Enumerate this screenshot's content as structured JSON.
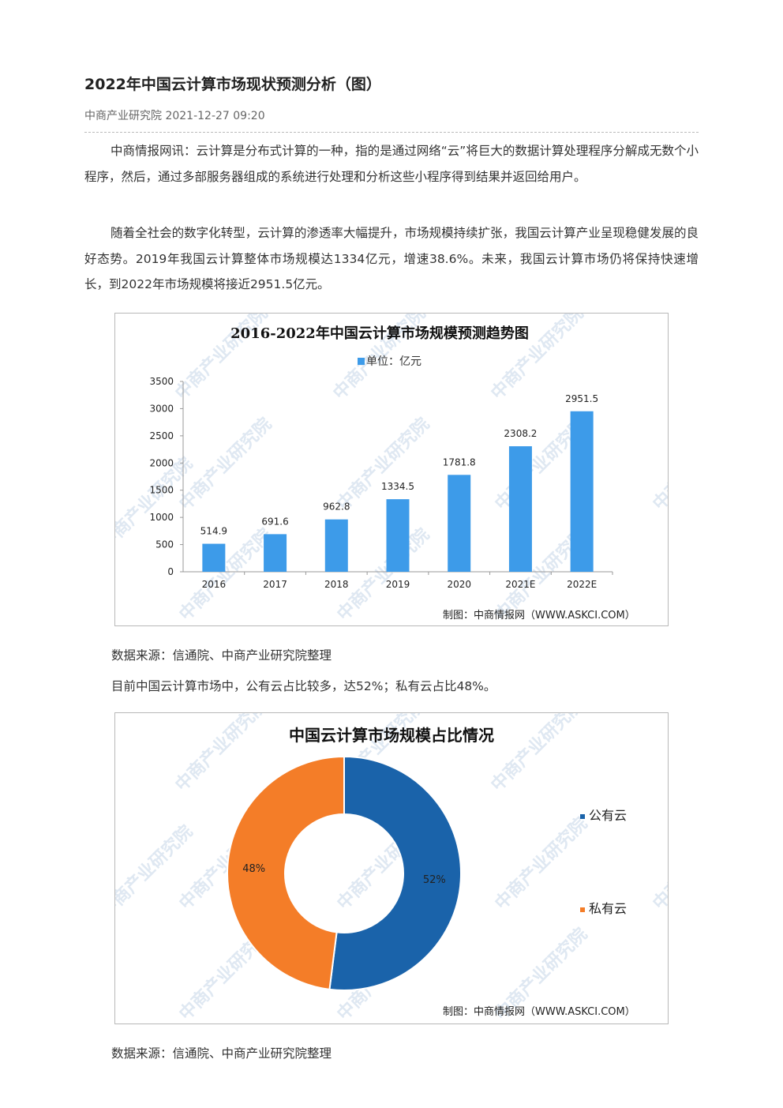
{
  "article": {
    "title": "2022年中国云计算市场现状预测分析（图）",
    "meta": "中商产业研究院 2021-12-27 09:20",
    "paragraph1": "中商情报网讯：云计算是分布式计算的一种，指的是通过网络“云”将巨大的数据计算处理程序分解成无数个小程序，然后，通过多部服务器组成的系统进行处理和分析这些小程序得到结果并返回给用户。",
    "paragraph2": "随着全社会的数字化转型，云计算的渗透率大幅提升，市场规模持续扩张，我国云计算产业呈现稳健发展的良好态势。2019年我国云计算整体市场规模达1334亿元，增速38.6%。未来，我国云计算市场仍将保持快速增长，到2022年市场规模将接近2951.5亿元。",
    "source1": "数据来源：信通院、中商产业研究院整理",
    "paragraph3": "目前中国云计算市场中，公有云占比较多，达52%；私有云占比48%。",
    "source2": "数据来源：信通院、中商产业研究院整理"
  },
  "watermark": {
    "text": "中商产业研究院"
  },
  "colors": {
    "bar": "#3d9be9",
    "public_cloud": "#1a63aa",
    "private_cloud": "#f47d28",
    "watermark": "#dfe8f2"
  },
  "chart_data": [
    {
      "type": "bar",
      "title": "2016-2022年中国云计算市场规模预测趋势图",
      "legend": "单位：亿元",
      "legend_position": "top-center",
      "categories": [
        "2016",
        "2017",
        "2018",
        "2019",
        "2020",
        "2021E",
        "2022E"
      ],
      "values": [
        514.9,
        691.6,
        962.8,
        1334.5,
        1781.8,
        2308.2,
        2951.5
      ],
      "value_labels": [
        "514.9",
        "691.6",
        "962.8",
        "1334.5",
        "1781.8",
        "2308.2",
        "2951.5"
      ],
      "ylim": [
        0,
        3500
      ],
      "yticks": [
        "0",
        "500",
        "1000",
        "1500",
        "2000",
        "2500",
        "3000",
        "3500"
      ],
      "grid": false,
      "credit": "制图：中商情报网（WWW.ASKCI.COM）"
    },
    {
      "type": "pie",
      "title": "中国云计算市场规模占比情况",
      "donut": true,
      "legend_position": "right",
      "slices": [
        {
          "name": "公有云",
          "value": 52,
          "label": "52%"
        },
        {
          "name": "私有云",
          "value": 48,
          "label": "48%"
        }
      ],
      "credit": "制图：中商情报网（WWW.ASKCI.COM）"
    }
  ]
}
